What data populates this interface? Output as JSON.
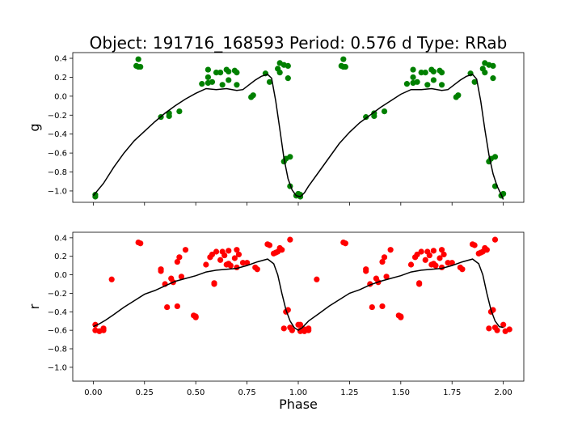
{
  "title": "Object: 191716_168593    Period: 0.576 d    Type: RRab",
  "colors": {
    "g": "#008000",
    "r": "#ff0000",
    "model": "#000000"
  },
  "chart_data": [
    {
      "type": "scatter",
      "name": "g-panel",
      "ylabel": "g",
      "xlabel": "",
      "xlim": [
        -0.1,
        2.1
      ],
      "ylim": [
        -1.12,
        0.46
      ],
      "inverted_y": false,
      "xticks": [
        "0.00",
        "0.25",
        "0.50",
        "0.75",
        "1.00",
        "1.25",
        "1.50",
        "1.75",
        "2.00"
      ],
      "xtick_values": [
        0,
        0.25,
        0.5,
        0.75,
        1.0,
        1.25,
        1.5,
        1.75,
        2.0
      ],
      "show_xtick_labels": false,
      "yticks": [
        "−1.0",
        "−0.8",
        "−0.6",
        "−0.4",
        "−0.2",
        "0.0",
        "0.2",
        "0.4"
      ],
      "ytick_values": [
        -1.0,
        -0.8,
        -0.6,
        -0.4,
        -0.2,
        0.0,
        0.2,
        0.4
      ],
      "points": [
        [
          0.01,
          -1.04
        ],
        [
          0.01,
          -1.06
        ],
        [
          0.21,
          0.32
        ],
        [
          0.22,
          0.39
        ],
        [
          0.22,
          0.31
        ],
        [
          0.23,
          0.31
        ],
        [
          0.33,
          -0.22
        ],
        [
          0.37,
          -0.21
        ],
        [
          0.37,
          -0.18
        ],
        [
          0.42,
          -0.16
        ],
        [
          0.53,
          0.13
        ],
        [
          0.56,
          0.2
        ],
        [
          0.56,
          0.28
        ],
        [
          0.56,
          0.14
        ],
        [
          0.58,
          0.15
        ],
        [
          0.6,
          0.25
        ],
        [
          0.62,
          0.25
        ],
        [
          0.63,
          0.12
        ],
        [
          0.65,
          0.28
        ],
        [
          0.66,
          0.26
        ],
        [
          0.66,
          0.17
        ],
        [
          0.69,
          0.27
        ],
        [
          0.7,
          0.25
        ],
        [
          0.7,
          0.12
        ],
        [
          0.77,
          -0.01
        ],
        [
          0.78,
          0.01
        ],
        [
          0.84,
          0.24
        ],
        [
          0.86,
          0.15
        ],
        [
          0.9,
          0.29
        ],
        [
          0.91,
          0.35
        ],
        [
          0.91,
          0.25
        ],
        [
          0.93,
          0.33
        ],
        [
          0.93,
          -0.69
        ],
        [
          0.94,
          -0.66
        ],
        [
          0.95,
          0.32
        ],
        [
          0.95,
          0.19
        ],
        [
          0.96,
          -0.64
        ],
        [
          0.96,
          -0.95
        ],
        [
          0.99,
          -1.05
        ],
        [
          1.0,
          -1.03
        ]
      ],
      "model": [
        [
          0.0,
          -1.05
        ],
        [
          0.05,
          -0.92
        ],
        [
          0.1,
          -0.75
        ],
        [
          0.15,
          -0.6
        ],
        [
          0.2,
          -0.47
        ],
        [
          0.25,
          -0.37
        ],
        [
          0.3,
          -0.27
        ],
        [
          0.35,
          -0.18
        ],
        [
          0.4,
          -0.1
        ],
        [
          0.45,
          -0.03
        ],
        [
          0.5,
          0.03
        ],
        [
          0.55,
          0.08
        ],
        [
          0.6,
          0.07
        ],
        [
          0.65,
          0.08
        ],
        [
          0.7,
          0.06
        ],
        [
          0.73,
          0.07
        ],
        [
          0.76,
          0.12
        ],
        [
          0.79,
          0.17
        ],
        [
          0.82,
          0.21
        ],
        [
          0.85,
          0.23
        ],
        [
          0.87,
          0.19
        ],
        [
          0.89,
          -0.05
        ],
        [
          0.91,
          -0.35
        ],
        [
          0.93,
          -0.65
        ],
        [
          0.95,
          -0.87
        ],
        [
          0.97,
          -0.99
        ],
        [
          0.99,
          -1.05
        ],
        [
          1.01,
          -1.06
        ],
        [
          1.03,
          -1.02
        ],
        [
          1.05,
          -0.95
        ],
        [
          1.1,
          -0.8
        ],
        [
          1.15,
          -0.65
        ],
        [
          1.2,
          -0.5
        ],
        [
          1.25,
          -0.38
        ],
        [
          1.3,
          -0.28
        ],
        [
          1.35,
          -0.2
        ],
        [
          1.4,
          -0.12
        ],
        [
          1.45,
          -0.05
        ],
        [
          1.5,
          0.02
        ],
        [
          1.55,
          0.07
        ],
        [
          1.6,
          0.07
        ],
        [
          1.65,
          0.08
        ],
        [
          1.7,
          0.06
        ],
        [
          1.73,
          0.07
        ],
        [
          1.76,
          0.12
        ],
        [
          1.79,
          0.17
        ],
        [
          1.82,
          0.21
        ],
        [
          1.85,
          0.23
        ],
        [
          1.87,
          0.18
        ],
        [
          1.89,
          -0.05
        ],
        [
          1.91,
          -0.35
        ],
        [
          1.93,
          -0.62
        ],
        [
          1.95,
          -0.82
        ],
        [
          1.97,
          -0.95
        ],
        [
          1.99,
          -1.04
        ],
        [
          2.0,
          -1.09
        ]
      ]
    },
    {
      "type": "scatter",
      "name": "r-panel",
      "ylabel": "r",
      "xlabel": "Phase",
      "xlim": [
        -0.1,
        2.1
      ],
      "ylim": [
        -1.15,
        0.46
      ],
      "inverted_y": false,
      "xticks": [
        "0.00",
        "0.25",
        "0.50",
        "0.75",
        "1.00",
        "1.25",
        "1.50",
        "1.75",
        "2.00"
      ],
      "xtick_values": [
        0,
        0.25,
        0.5,
        0.75,
        1.0,
        1.25,
        1.5,
        1.75,
        2.0
      ],
      "show_xtick_labels": true,
      "yticks": [
        "−1.0",
        "−0.8",
        "−0.6",
        "−0.4",
        "−0.2",
        "0.0",
        "0.2",
        "0.4"
      ],
      "ytick_values": [
        -1.0,
        -0.8,
        -0.6,
        -0.4,
        -0.2,
        0.0,
        0.2,
        0.4
      ],
      "points": [
        [
          0.01,
          -0.54
        ],
        [
          0.01,
          -0.6
        ],
        [
          0.03,
          -0.61
        ],
        [
          0.05,
          -0.58
        ],
        [
          0.05,
          -0.6
        ],
        [
          0.09,
          -0.05
        ],
        [
          0.22,
          0.35
        ],
        [
          0.23,
          0.34
        ],
        [
          0.33,
          0.04
        ],
        [
          0.33,
          0.06
        ],
        [
          0.35,
          -0.1
        ],
        [
          0.36,
          -0.35
        ],
        [
          0.38,
          -0.04
        ],
        [
          0.39,
          -0.08
        ],
        [
          0.41,
          -0.34
        ],
        [
          0.41,
          0.14
        ],
        [
          0.42,
          0.19
        ],
        [
          0.43,
          -0.02
        ],
        [
          0.45,
          0.27
        ],
        [
          0.49,
          -0.44
        ],
        [
          0.5,
          -0.46
        ],
        [
          0.5,
          -0.45
        ],
        [
          0.55,
          0.11
        ],
        [
          0.57,
          0.19
        ],
        [
          0.58,
          0.22
        ],
        [
          0.59,
          -0.09
        ],
        [
          0.59,
          -0.1
        ],
        [
          0.6,
          0.25
        ],
        [
          0.62,
          0.16
        ],
        [
          0.63,
          0.25
        ],
        [
          0.64,
          0.21
        ],
        [
          0.65,
          0.11
        ],
        [
          0.66,
          0.12
        ],
        [
          0.66,
          0.26
        ],
        [
          0.67,
          0.1
        ],
        [
          0.69,
          0.18
        ],
        [
          0.7,
          0.27
        ],
        [
          0.71,
          0.22
        ],
        [
          0.7,
          0.08
        ],
        [
          0.73,
          0.13
        ],
        [
          0.75,
          0.13
        ],
        [
          0.79,
          0.08
        ],
        [
          0.8,
          0.06
        ],
        [
          0.85,
          0.33
        ],
        [
          0.86,
          0.32
        ],
        [
          0.88,
          0.23
        ],
        [
          0.89,
          0.24
        ],
        [
          0.9,
          0.25
        ],
        [
          0.91,
          0.29
        ],
        [
          0.92,
          0.27
        ],
        [
          0.93,
          -0.58
        ],
        [
          0.94,
          -0.4
        ],
        [
          0.95,
          -0.38
        ],
        [
          0.96,
          0.38
        ],
        [
          0.96,
          -0.57
        ],
        [
          0.97,
          -0.6
        ],
        [
          1.0,
          -0.54
        ],
        [
          1.01,
          -0.61
        ],
        [
          1.03,
          -0.59
        ]
      ],
      "model": [
        [
          0.0,
          -0.56
        ],
        [
          0.03,
          -0.53
        ],
        [
          0.06,
          -0.49
        ],
        [
          0.1,
          -0.43
        ],
        [
          0.15,
          -0.35
        ],
        [
          0.2,
          -0.28
        ],
        [
          0.25,
          -0.21
        ],
        [
          0.3,
          -0.17
        ],
        [
          0.35,
          -0.12
        ],
        [
          0.4,
          -0.07
        ],
        [
          0.45,
          -0.04
        ],
        [
          0.5,
          -0.01
        ],
        [
          0.55,
          0.03
        ],
        [
          0.6,
          0.05
        ],
        [
          0.65,
          0.06
        ],
        [
          0.7,
          0.07
        ],
        [
          0.75,
          0.1
        ],
        [
          0.8,
          0.14
        ],
        [
          0.85,
          0.17
        ],
        [
          0.88,
          0.12
        ],
        [
          0.9,
          0.0
        ],
        [
          0.92,
          -0.2
        ],
        [
          0.94,
          -0.38
        ],
        [
          0.96,
          -0.5
        ],
        [
          0.98,
          -0.57
        ],
        [
          1.0,
          -0.6
        ],
        [
          1.02,
          -0.57
        ],
        [
          1.05,
          -0.5
        ],
        [
          1.1,
          -0.42
        ],
        [
          1.15,
          -0.34
        ],
        [
          1.2,
          -0.27
        ],
        [
          1.25,
          -0.2
        ],
        [
          1.3,
          -0.16
        ],
        [
          1.35,
          -0.11
        ],
        [
          1.4,
          -0.07
        ],
        [
          1.45,
          -0.04
        ],
        [
          1.5,
          -0.01
        ],
        [
          1.55,
          0.03
        ],
        [
          1.6,
          0.05
        ],
        [
          1.65,
          0.06
        ],
        [
          1.7,
          0.07
        ],
        [
          1.75,
          0.1
        ],
        [
          1.8,
          0.14
        ],
        [
          1.85,
          0.17
        ],
        [
          1.88,
          0.12
        ],
        [
          1.9,
          0.0
        ],
        [
          1.92,
          -0.2
        ],
        [
          1.94,
          -0.38
        ],
        [
          1.96,
          -0.5
        ],
        [
          1.98,
          -0.56
        ],
        [
          2.0,
          -0.57
        ]
      ]
    }
  ]
}
